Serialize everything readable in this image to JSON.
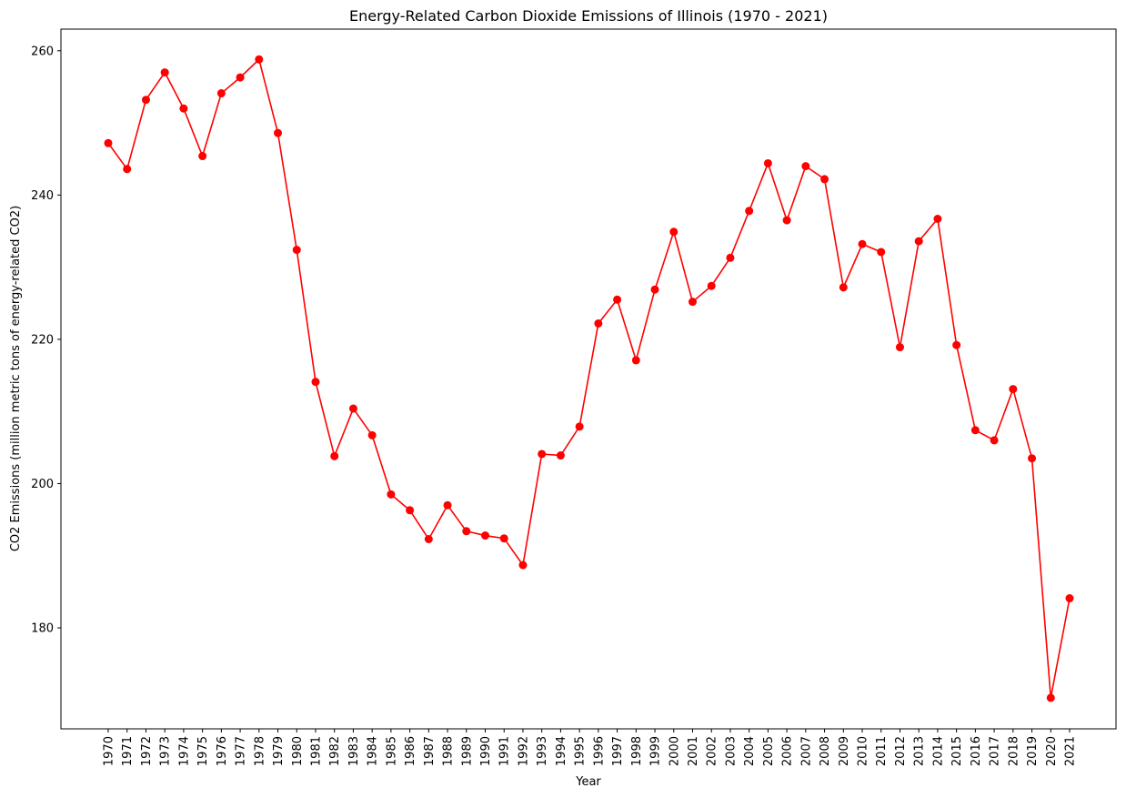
{
  "chart_data": {
    "type": "line",
    "title": "Energy-Related Carbon Dioxide Emissions of Illinois (1970 - 2021)",
    "xlabel": "Year",
    "ylabel": "CO2 Emissions (million metric tons of energy-related CO2)",
    "ylim": [
      166,
      263
    ],
    "yticks": [
      180,
      200,
      220,
      240,
      260
    ],
    "grid": false,
    "legend": "none",
    "line_color": "#ff0000",
    "marker_color": "#ff0000",
    "x": [
      "1970",
      "1971",
      "1972",
      "1973",
      "1974",
      "1975",
      "1976",
      "1977",
      "1978",
      "1979",
      "1980",
      "1981",
      "1982",
      "1983",
      "1984",
      "1985",
      "1986",
      "1987",
      "1988",
      "1989",
      "1990",
      "1991",
      "1992",
      "1993",
      "1994",
      "1995",
      "1996",
      "1997",
      "1998",
      "1999",
      "2000",
      "2001",
      "2002",
      "2003",
      "2004",
      "2005",
      "2006",
      "2007",
      "2008",
      "2009",
      "2010",
      "2011",
      "2012",
      "2013",
      "2014",
      "2015",
      "2016",
      "2017",
      "2018",
      "2019",
      "2020",
      "2021"
    ],
    "values": [
      247.2,
      243.6,
      253.2,
      257.0,
      252.0,
      245.4,
      254.1,
      256.3,
      258.8,
      248.6,
      232.4,
      214.1,
      203.8,
      210.4,
      206.7,
      198.5,
      196.3,
      192.3,
      197.0,
      193.4,
      192.8,
      192.4,
      188.7,
      204.1,
      203.9,
      207.9,
      222.2,
      225.5,
      217.1,
      226.9,
      234.9,
      225.2,
      227.4,
      231.3,
      237.8,
      244.4,
      236.5,
      244.0,
      242.2,
      227.2,
      233.2,
      232.1,
      218.9,
      233.6,
      236.7,
      219.2,
      207.4,
      206.0,
      213.1,
      203.5,
      170.3,
      184.1
    ]
  }
}
